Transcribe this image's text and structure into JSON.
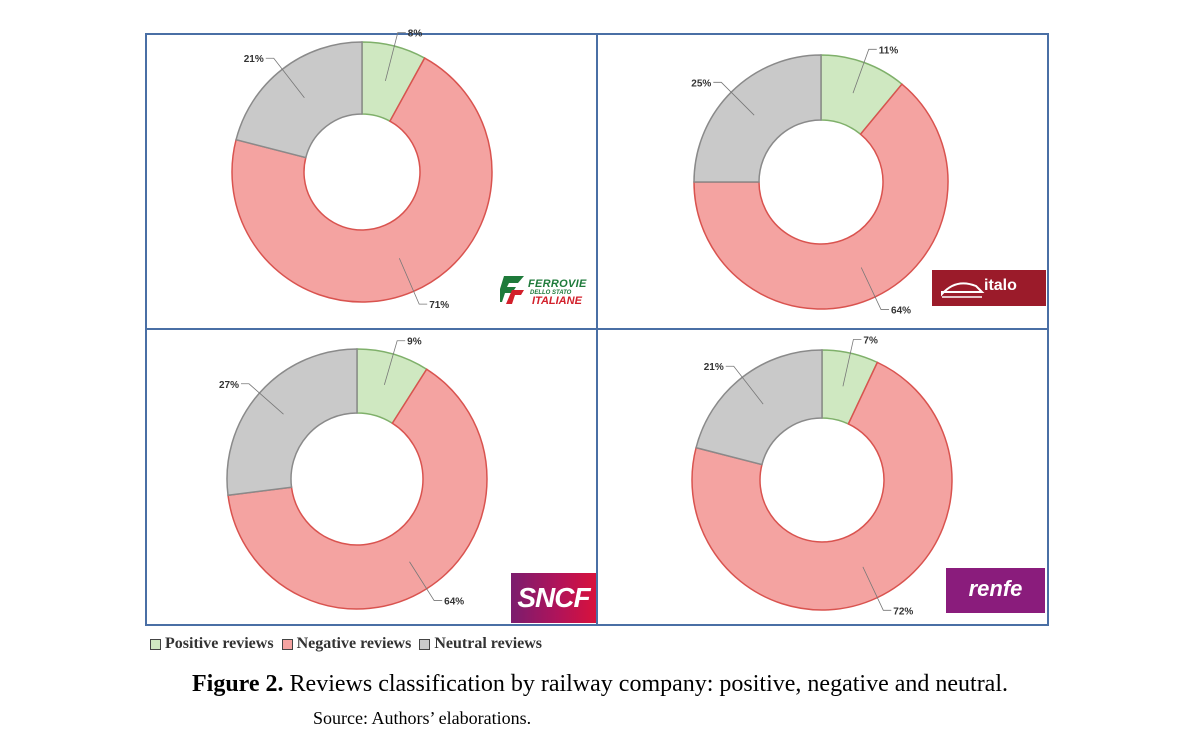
{
  "chart_data": [
    {
      "type": "pie",
      "company": "Ferrovie dello Stato Italiane",
      "slices": [
        {
          "label": "Positive reviews",
          "value": 8,
          "label_text": "8%"
        },
        {
          "label": "Negative reviews",
          "value": 71,
          "label_text": "71%"
        },
        {
          "label": "Neutral reviews",
          "value": 21,
          "label_text": "21%"
        }
      ]
    },
    {
      "type": "pie",
      "company": "Italo",
      "slices": [
        {
          "label": "Positive reviews",
          "value": 11,
          "label_text": "11%"
        },
        {
          "label": "Negative reviews",
          "value": 64,
          "label_text": "64%"
        },
        {
          "label": "Neutral reviews",
          "value": 25,
          "label_text": "25%"
        }
      ]
    },
    {
      "type": "pie",
      "company": "SNCF",
      "slices": [
        {
          "label": "Positive reviews",
          "value": 9,
          "label_text": "9%"
        },
        {
          "label": "Negative reviews",
          "value": 64,
          "label_text": "64%"
        },
        {
          "label": "Neutral reviews",
          "value": 27,
          "label_text": "27%"
        }
      ]
    },
    {
      "type": "pie",
      "company": "Renfe",
      "slices": [
        {
          "label": "Positive reviews",
          "value": 7,
          "label_text": "7%"
        },
        {
          "label": "Negative reviews",
          "value": 72,
          "label_text": "72%"
        },
        {
          "label": "Neutral reviews",
          "value": 21,
          "label_text": "21%"
        }
      ]
    }
  ],
  "colors": {
    "positive": "#cfe8c1",
    "negative": "#f4a3a1",
    "neutral": "#c9c9c9",
    "border": "#4a6fa5"
  },
  "logos": {
    "fs_line1": "FERROVIE",
    "fs_line2": "DELLO STATO",
    "fs_line3": "ITALIANE",
    "italo": "italo",
    "sncf": "SNCF",
    "renfe": "renfe"
  },
  "legend": [
    "Positive reviews",
    "Negative reviews",
    "Neutral reviews"
  ],
  "caption": {
    "label": "Figure 2.",
    "text": " Reviews classification by railway company: positive, negative and neutral."
  },
  "source": "Source: Authors’ elaborations."
}
